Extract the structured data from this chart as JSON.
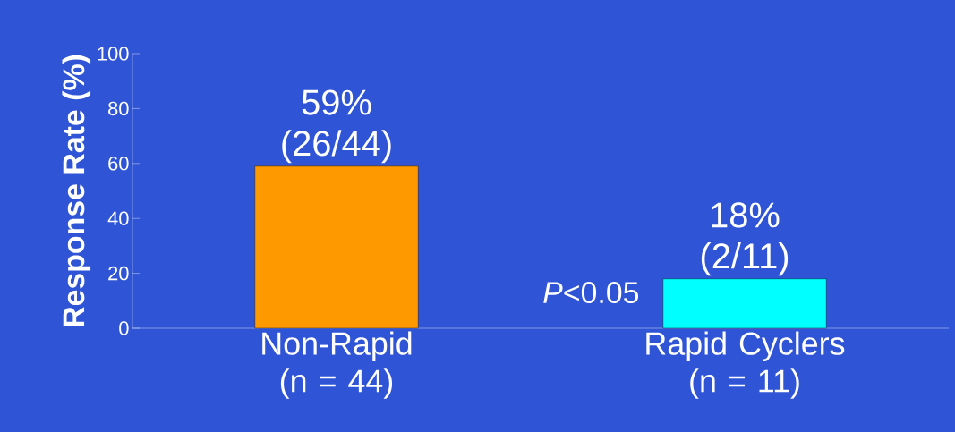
{
  "chart_data": {
    "type": "bar",
    "ylabel": "Response Rate (%)",
    "categories": [
      "Non-Rapid (n = 44)",
      "Rapid Cyclers (n = 11)"
    ],
    "values": [
      59,
      18
    ],
    "colors": [
      "#ff9900",
      "#00ffff"
    ],
    "value_labels": [
      "59% (26/44)",
      "18% (2/11)"
    ],
    "ylim": [
      0,
      100
    ],
    "yticks": [
      0,
      20,
      40,
      60,
      80,
      100
    ],
    "annotations": [
      "*P*<0.05"
    ],
    "grid": false
  }
}
